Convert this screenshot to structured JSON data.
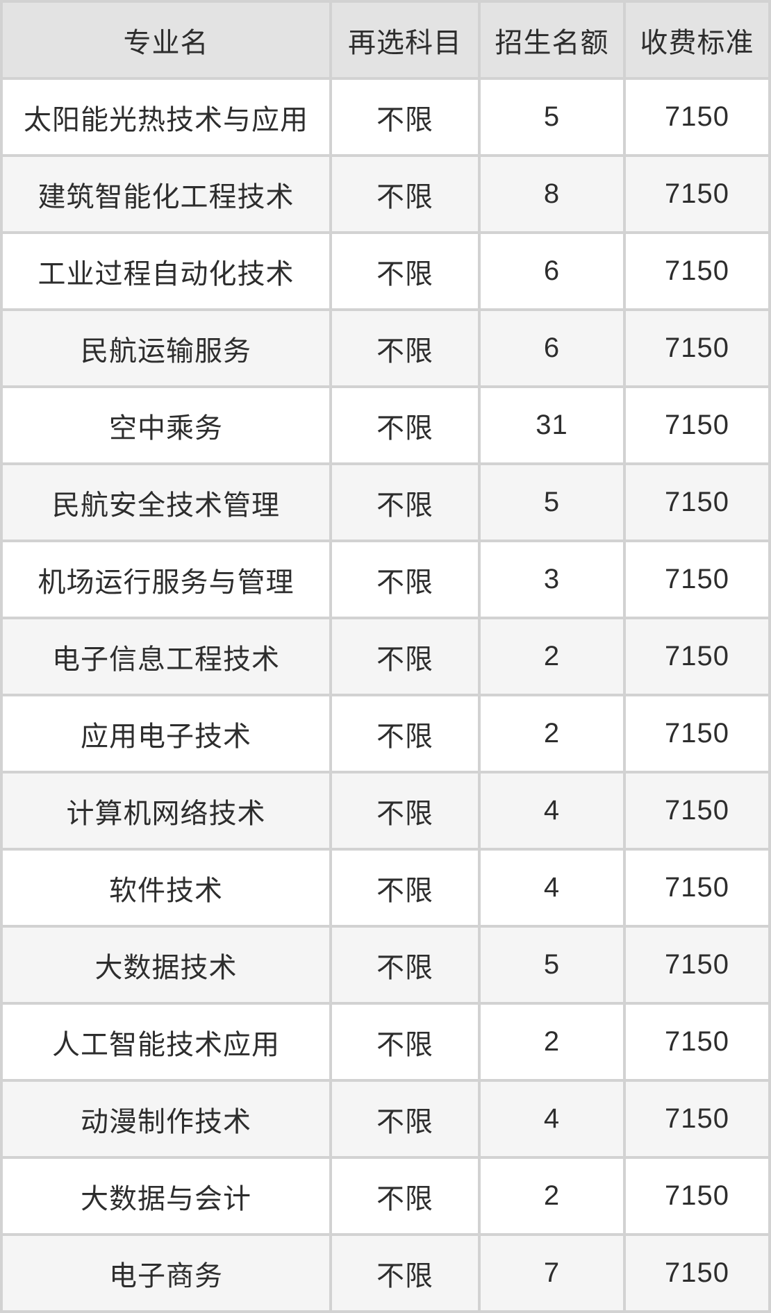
{
  "chart_data": {
    "type": "table",
    "title": "",
    "columns": [
      "专业名",
      "再选科目",
      "招生名额",
      "收费标准"
    ],
    "column_keys": [
      "major",
      "subject",
      "quota",
      "fee"
    ],
    "rows": [
      [
        "太阳能光热技术与应用",
        "不限",
        "5",
        "7150"
      ],
      [
        "建筑智能化工程技术",
        "不限",
        "8",
        "7150"
      ],
      [
        "工业过程自动化技术",
        "不限",
        "6",
        "7150"
      ],
      [
        "民航运输服务",
        "不限",
        "6",
        "7150"
      ],
      [
        "空中乘务",
        "不限",
        "31",
        "7150"
      ],
      [
        "民航安全技术管理",
        "不限",
        "5",
        "7150"
      ],
      [
        "机场运行服务与管理",
        "不限",
        "3",
        "7150"
      ],
      [
        "电子信息工程技术",
        "不限",
        "2",
        "7150"
      ],
      [
        "应用电子技术",
        "不限",
        "2",
        "7150"
      ],
      [
        "计算机网络技术",
        "不限",
        "4",
        "7150"
      ],
      [
        "软件技术",
        "不限",
        "4",
        "7150"
      ],
      [
        "大数据技术",
        "不限",
        "5",
        "7150"
      ],
      [
        "人工智能技术应用",
        "不限",
        "2",
        "7150"
      ],
      [
        "动漫制作技术",
        "不限",
        "4",
        "7150"
      ],
      [
        "大数据与会计",
        "不限",
        "2",
        "7150"
      ],
      [
        "电子商务",
        "不限",
        "7",
        "7150"
      ]
    ],
    "layout": {
      "grid": "on",
      "header_position": "top",
      "row_striping": "alternating"
    }
  },
  "colors": {
    "header_bg": "#e3e3e3",
    "row_bg": "#ffffff",
    "row_alt_bg": "#f5f5f5",
    "gridline": "#d2d2d2",
    "text": "#2d2d2d"
  }
}
